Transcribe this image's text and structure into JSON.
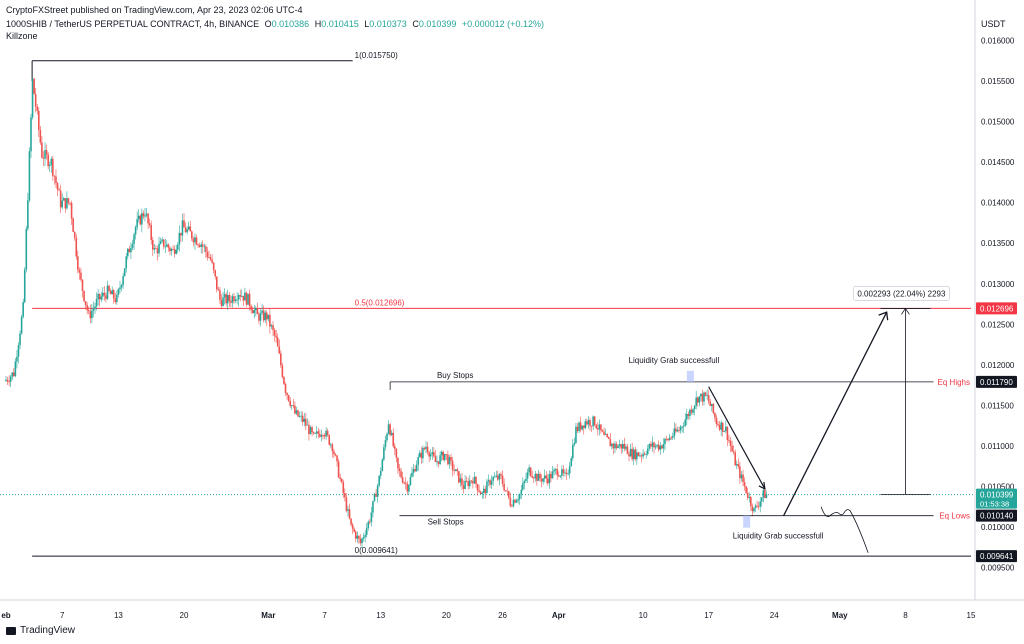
{
  "header": {
    "published": "CryptoFXStreet published on TradingView.com, Apr 23, 2023 02:06 UTC-4",
    "symbol": "1000SHIB / TetherUS PERPETUAL CONTRACT, 4h, BINANCE",
    "o_label": "O",
    "o_value": "0.010386",
    "h_label": "H",
    "h_value": "0.010415",
    "l_label": "L",
    "l_value": "0.010373",
    "c_label": "C",
    "c_value": "0.010399",
    "change": "+0.000012 (+0.12%)",
    "indicator": "Killzone"
  },
  "footer": {
    "brand": "TradingView"
  },
  "colors": {
    "up": "#26a69a",
    "down": "#ef5350",
    "fib_mid": "#f23645",
    "text": "#131722"
  },
  "chart_data": {
    "type": "candlestick",
    "currency": "USDT",
    "ylim": [
      0.0091,
      0.0165
    ],
    "y_ticks": [
      "0.016000",
      "0.015500",
      "0.015000",
      "0.014500",
      "0.014000",
      "0.013500",
      "0.013000",
      "0.012500",
      "0.012000",
      "0.011500",
      "0.011000",
      "0.010500",
      "0.010000",
      "0.009500"
    ],
    "y_tick_values": [
      0.016,
      0.0155,
      0.015,
      0.0145,
      0.014,
      0.0135,
      0.013,
      0.0125,
      0.012,
      0.0115,
      0.011,
      0.0105,
      0.01,
      0.0095
    ],
    "x_domain": [
      "2023-02-01",
      "2023-05-15"
    ],
    "x_ticks": [
      {
        "label": "eb",
        "date": "2023-02-01"
      },
      {
        "label": "7",
        "date": "2023-02-07"
      },
      {
        "label": "13",
        "date": "2023-02-13"
      },
      {
        "label": "20",
        "date": "2023-02-20"
      },
      {
        "label": "Mar",
        "date": "2023-03-01"
      },
      {
        "label": "7",
        "date": "2023-03-07"
      },
      {
        "label": "13",
        "date": "2023-03-13"
      },
      {
        "label": "20",
        "date": "2023-03-20"
      },
      {
        "label": "26",
        "date": "2023-03-26"
      },
      {
        "label": "Apr",
        "date": "2023-04-01"
      },
      {
        "label": "10",
        "date": "2023-04-10"
      },
      {
        "label": "17",
        "date": "2023-04-17"
      },
      {
        "label": "24",
        "date": "2023-04-24"
      },
      {
        "label": "May",
        "date": "2023-05-01"
      },
      {
        "label": "8",
        "date": "2023-05-08"
      },
      {
        "label": "15",
        "date": "2023-05-15"
      }
    ],
    "price_path": [
      [
        "2023-02-01",
        0.0118
      ],
      [
        "2023-02-02",
        0.0119
      ],
      [
        "2023-02-03",
        0.0127
      ],
      [
        "2023-02-04",
        0.0155
      ],
      [
        "2023-02-05",
        0.0146
      ],
      [
        "2023-02-06",
        0.0145
      ],
      [
        "2023-02-07",
        0.014
      ],
      [
        "2023-02-08",
        0.014
      ],
      [
        "2023-02-09",
        0.0131
      ],
      [
        "2023-02-10",
        0.0126
      ],
      [
        "2023-02-11",
        0.0128
      ],
      [
        "2023-02-12",
        0.0129
      ],
      [
        "2023-02-13",
        0.0128
      ],
      [
        "2023-02-14",
        0.0133
      ],
      [
        "2023-02-15",
        0.0137
      ],
      [
        "2023-02-16",
        0.0139
      ],
      [
        "2023-02-17",
        0.0134
      ],
      [
        "2023-02-18",
        0.0135
      ],
      [
        "2023-02-19",
        0.0134
      ],
      [
        "2023-02-20",
        0.0137
      ],
      [
        "2023-02-21",
        0.0136
      ],
      [
        "2023-02-22",
        0.0135
      ],
      [
        "2023-02-23",
        0.0133
      ],
      [
        "2023-02-24",
        0.0128
      ],
      [
        "2023-02-25",
        0.0128
      ],
      [
        "2023-02-26",
        0.0129
      ],
      [
        "2023-02-27",
        0.0128
      ],
      [
        "2023-02-28",
        0.0126
      ],
      [
        "2023-03-01",
        0.0126
      ],
      [
        "2023-03-02",
        0.0123
      ],
      [
        "2023-03-03",
        0.0117
      ],
      [
        "2023-03-04",
        0.0114
      ],
      [
        "2023-03-05",
        0.0113
      ],
      [
        "2023-03-06",
        0.0111
      ],
      [
        "2023-03-07",
        0.0112
      ],
      [
        "2023-03-08",
        0.011
      ],
      [
        "2023-03-09",
        0.0105
      ],
      [
        "2023-03-10",
        0.01
      ],
      [
        "2023-03-11",
        0.0098
      ],
      [
        "2023-03-12",
        0.0101
      ],
      [
        "2023-03-13",
        0.0106
      ],
      [
        "2023-03-14",
        0.0113
      ],
      [
        "2023-03-15",
        0.0107
      ],
      [
        "2023-03-16",
        0.0105
      ],
      [
        "2023-03-17",
        0.0108
      ],
      [
        "2023-03-18",
        0.011
      ],
      [
        "2023-03-19",
        0.0108
      ],
      [
        "2023-03-20",
        0.0109
      ],
      [
        "2023-03-21",
        0.0107
      ],
      [
        "2023-03-22",
        0.0105
      ],
      [
        "2023-03-23",
        0.0106
      ],
      [
        "2023-03-24",
        0.0104
      ],
      [
        "2023-03-25",
        0.0106
      ],
      [
        "2023-03-26",
        0.0106
      ],
      [
        "2023-03-27",
        0.0103
      ],
      [
        "2023-03-28",
        0.0104
      ],
      [
        "2023-03-29",
        0.0107
      ],
      [
        "2023-03-30",
        0.0106
      ],
      [
        "2023-03-31",
        0.0106
      ],
      [
        "2023-04-01",
        0.0107
      ],
      [
        "2023-04-02",
        0.0106
      ],
      [
        "2023-04-03",
        0.0112
      ],
      [
        "2023-04-04",
        0.0113
      ],
      [
        "2023-04-05",
        0.0113
      ],
      [
        "2023-04-06",
        0.0111
      ],
      [
        "2023-04-07",
        0.011
      ],
      [
        "2023-04-08",
        0.011
      ],
      [
        "2023-04-09",
        0.0109
      ],
      [
        "2023-04-10",
        0.0109
      ],
      [
        "2023-04-11",
        0.011
      ],
      [
        "2023-04-12",
        0.011
      ],
      [
        "2023-04-13",
        0.0111
      ],
      [
        "2023-04-14",
        0.0112
      ],
      [
        "2023-04-15",
        0.0114
      ],
      [
        "2023-04-16",
        0.0116
      ],
      [
        "2023-04-17",
        0.0116
      ],
      [
        "2023-04-18",
        0.0113
      ],
      [
        "2023-04-19",
        0.0112
      ],
      [
        "2023-04-20",
        0.0108
      ],
      [
        "2023-04-21",
        0.0105
      ],
      [
        "2023-04-22",
        0.0102
      ],
      [
        "2023-04-23",
        0.0104
      ]
    ],
    "last_price": {
      "value": "0.010399",
      "countdown": "01:53:38",
      "price": 0.010399
    },
    "fib_levels": [
      {
        "label": "1(0.015750)",
        "price": 0.01575,
        "x_start": "2023-02-04",
        "x_end": "2023-03-10",
        "color": "#131722"
      },
      {
        "label": "0.5(0.012696)",
        "price": 0.012696,
        "x_start": "2023-02-04",
        "x_end": "2023-05-15",
        "color": "#f23645"
      },
      {
        "label": "0(0.009641)",
        "price": 0.009641,
        "x_start": "2023-02-04",
        "x_end": "2023-05-15",
        "color": "#131722"
      }
    ],
    "price_labels": [
      {
        "value": "0.012696",
        "price": 0.012696,
        "style": "red"
      },
      {
        "value": "0.011790",
        "price": 0.01179,
        "style": "black"
      },
      {
        "value": "0.010140",
        "price": 0.01014,
        "style": "black"
      },
      {
        "value": "0.009641",
        "price": 0.009641,
        "style": "black"
      }
    ],
    "annotations": {
      "buy_stops": "Buy Stops",
      "sell_stops": "Sell Stops",
      "liquidity_top": "Liquidity Grab successfull",
      "liquidity_bottom": "Liquidity Grab successfull",
      "eq_highs": "Eq Highs",
      "eq_lows": "Eq Lows",
      "measure": "0.002293 (22.04%) 2293"
    },
    "levels": {
      "eq_high": 0.01179,
      "eq_low": 0.01014,
      "measure_from": 0.010403,
      "measure_to": 0.012696
    }
  }
}
